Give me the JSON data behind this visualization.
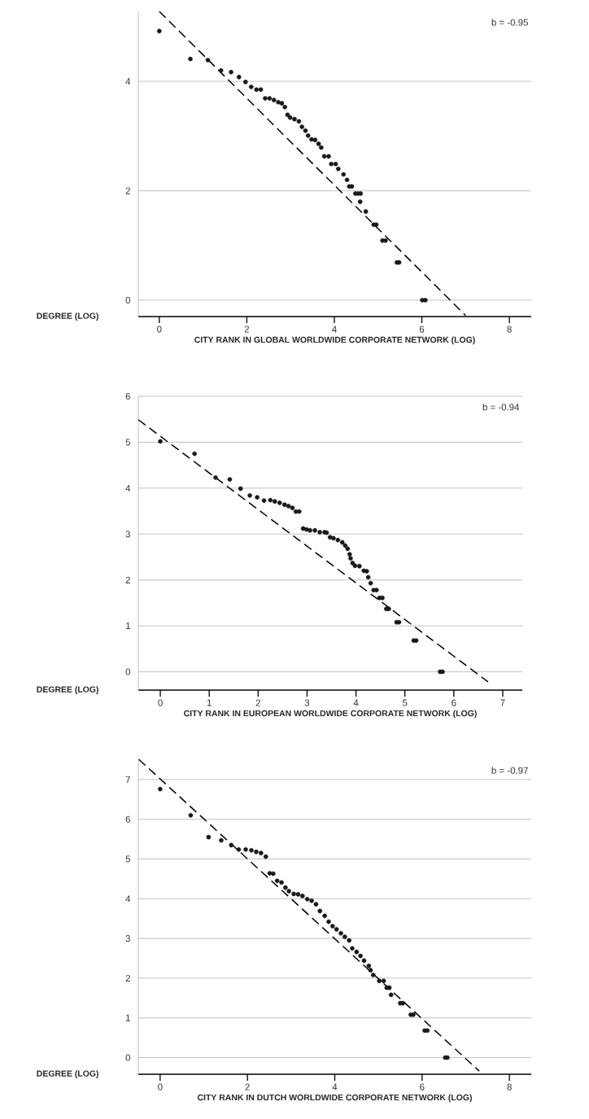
{
  "chart_data": [
    {
      "type": "scatter",
      "xlabel": "CITY RANK IN GLOBAL WORLDWIDE CORPORATE NETWORK (LOG)",
      "ylabel": "DEGREE (LOG)",
      "annotations": [
        "b = -0.95"
      ],
      "xlim": [
        -0.48,
        8.5
      ],
      "ylim": [
        -0.3,
        5.28
      ],
      "xticks": [
        0,
        2,
        4,
        6,
        8
      ],
      "yticks": [
        0,
        2,
        4
      ],
      "grid": "y",
      "series": [
        {
          "color": "#1a1a1a",
          "marker": "circle",
          "x": [
            0,
            0.71,
            1.11,
            1.41,
            1.64,
            1.82,
            1.97,
            2.1,
            2.22,
            2.32,
            2.42,
            2.52,
            2.62,
            2.72,
            2.8,
            2.87,
            2.93,
            2.99,
            3.09,
            3.19,
            3.26,
            3.34,
            3.4,
            3.48,
            3.56,
            3.64,
            3.7,
            3.77,
            3.87,
            3.93,
            4.03,
            4.09,
            4.21,
            4.29,
            4.34,
            4.4,
            4.48,
            4.54,
            4.6,
            4.59,
            4.72,
            4.9,
            4.96,
            5.1,
            5.17,
            5.43,
            5.48,
            6.01,
            6.08
          ],
          "values": [
            4.92,
            4.41,
            4.39,
            4.2,
            4.17,
            4.08,
            3.99,
            3.9,
            3.85,
            3.85,
            3.69,
            3.69,
            3.66,
            3.62,
            3.6,
            3.53,
            3.39,
            3.34,
            3.31,
            3.27,
            3.17,
            3.1,
            3.01,
            2.94,
            2.93,
            2.86,
            2.79,
            2.63,
            2.63,
            2.49,
            2.49,
            2.4,
            2.3,
            2.2,
            2.08,
            2.08,
            1.95,
            1.95,
            1.95,
            1.8,
            1.62,
            1.38,
            1.38,
            1.09,
            1.09,
            0.69,
            0.69,
            0.0,
            0.0
          ]
        },
        {
          "type": "line",
          "color": "#000000",
          "line_style": "dashed",
          "marker": "none",
          "x": [
            0,
            7.0
          ],
          "values": [
            5.28,
            -0.28
          ]
        }
      ]
    },
    {
      "type": "scatter",
      "xlabel": "CITY RANK IN EUROPEAN WORLDWIDE CORPORATE NETWORK (LOG)",
      "ylabel": "DEGREE (LOG)",
      "annotations": [
        "b = -0.94"
      ],
      "xlim": [
        -0.45,
        7.4
      ],
      "ylim": [
        -0.4,
        6
      ],
      "xticks": [
        0,
        1,
        2,
        3,
        4,
        5,
        6,
        7
      ],
      "yticks": [
        0,
        1,
        2,
        3,
        4,
        5,
        6
      ],
      "grid": "y",
      "series": [
        {
          "color": "#1a1a1a",
          "marker": "circle",
          "x": [
            0,
            0.7,
            1.13,
            1.42,
            1.64,
            1.83,
            1.98,
            2.12,
            2.25,
            2.34,
            2.44,
            2.54,
            2.62,
            2.7,
            2.77,
            2.84,
            2.92,
            2.99,
            3.06,
            3.16,
            3.26,
            3.36,
            3.4,
            3.47,
            3.54,
            3.63,
            3.72,
            3.78,
            3.83,
            3.87,
            3.89,
            3.93,
            3.98,
            4.07,
            4.16,
            4.22,
            4.25,
            4.3,
            4.36,
            4.42,
            4.48,
            4.54,
            4.62,
            4.67,
            4.83,
            4.88,
            5.18,
            5.23,
            5.72,
            5.77
          ],
          "values": [
            5.02,
            4.75,
            4.23,
            4.19,
            3.99,
            3.84,
            3.8,
            3.73,
            3.74,
            3.71,
            3.68,
            3.64,
            3.61,
            3.57,
            3.49,
            3.49,
            3.12,
            3.1,
            3.08,
            3.08,
            3.04,
            3.04,
            3.03,
            2.93,
            2.91,
            2.87,
            2.82,
            2.75,
            2.68,
            2.56,
            2.47,
            2.37,
            2.31,
            2.3,
            2.2,
            2.19,
            2.06,
            1.93,
            1.78,
            1.78,
            1.61,
            1.61,
            1.37,
            1.37,
            1.08,
            1.08,
            0.68,
            0.68,
            0.0,
            0.0
          ]
        },
        {
          "type": "line",
          "color": "#000000",
          "line_style": "dashed",
          "marker": "none",
          "x": [
            -0.45,
            6.7
          ],
          "values": [
            5.49,
            -0.22
          ]
        }
      ]
    },
    {
      "type": "scatter",
      "xlabel": "CITY RANK IN DUTCH WORLDWIDE CORPORATE NETWORK (LOG)",
      "ylabel": "DEGREE (LOG)",
      "annotations": [
        "b = -0.97"
      ],
      "xlim": [
        -0.5,
        8.5
      ],
      "ylim": [
        -0.42,
        7.51
      ],
      "xticks": [
        0,
        2,
        4,
        6,
        8
      ],
      "yticks": [
        0,
        1,
        2,
        3,
        4,
        5,
        6,
        7
      ],
      "grid": "y",
      "series": [
        {
          "color": "#1a1a1a",
          "marker": "circle",
          "x": [
            0,
            0.7,
            1.11,
            1.4,
            1.63,
            1.8,
            1.96,
            2.09,
            2.2,
            2.31,
            2.42,
            2.51,
            2.59,
            2.68,
            2.78,
            2.87,
            2.95,
            3.06,
            3.16,
            3.26,
            3.37,
            3.47,
            3.57,
            3.66,
            3.77,
            3.86,
            3.95,
            4.04,
            4.14,
            4.23,
            4.33,
            4.4,
            4.5,
            4.59,
            4.67,
            4.78,
            4.82,
            4.88,
            5.02,
            5.12,
            5.19,
            5.25,
            5.29,
            5.5,
            5.56,
            5.74,
            5.8,
            6.06,
            6.12,
            6.53,
            6.58
          ],
          "values": [
            6.76,
            6.1,
            5.55,
            5.47,
            5.35,
            5.24,
            5.24,
            5.22,
            5.18,
            5.15,
            5.06,
            4.64,
            4.63,
            4.45,
            4.41,
            4.28,
            4.19,
            4.12,
            4.11,
            4.07,
            3.99,
            3.95,
            3.86,
            3.69,
            3.57,
            3.42,
            3.31,
            3.23,
            3.13,
            3.04,
            2.95,
            2.75,
            2.66,
            2.56,
            2.44,
            2.31,
            2.2,
            2.08,
            1.93,
            1.93,
            1.76,
            1.76,
            1.58,
            1.37,
            1.37,
            1.08,
            1.08,
            0.68,
            0.68,
            0.0,
            0.0
          ]
        },
        {
          "type": "line",
          "color": "#000000",
          "line_style": "dashed",
          "marker": "none",
          "x": [
            -0.49,
            7.31
          ],
          "values": [
            7.51,
            -0.34
          ]
        }
      ]
    }
  ]
}
